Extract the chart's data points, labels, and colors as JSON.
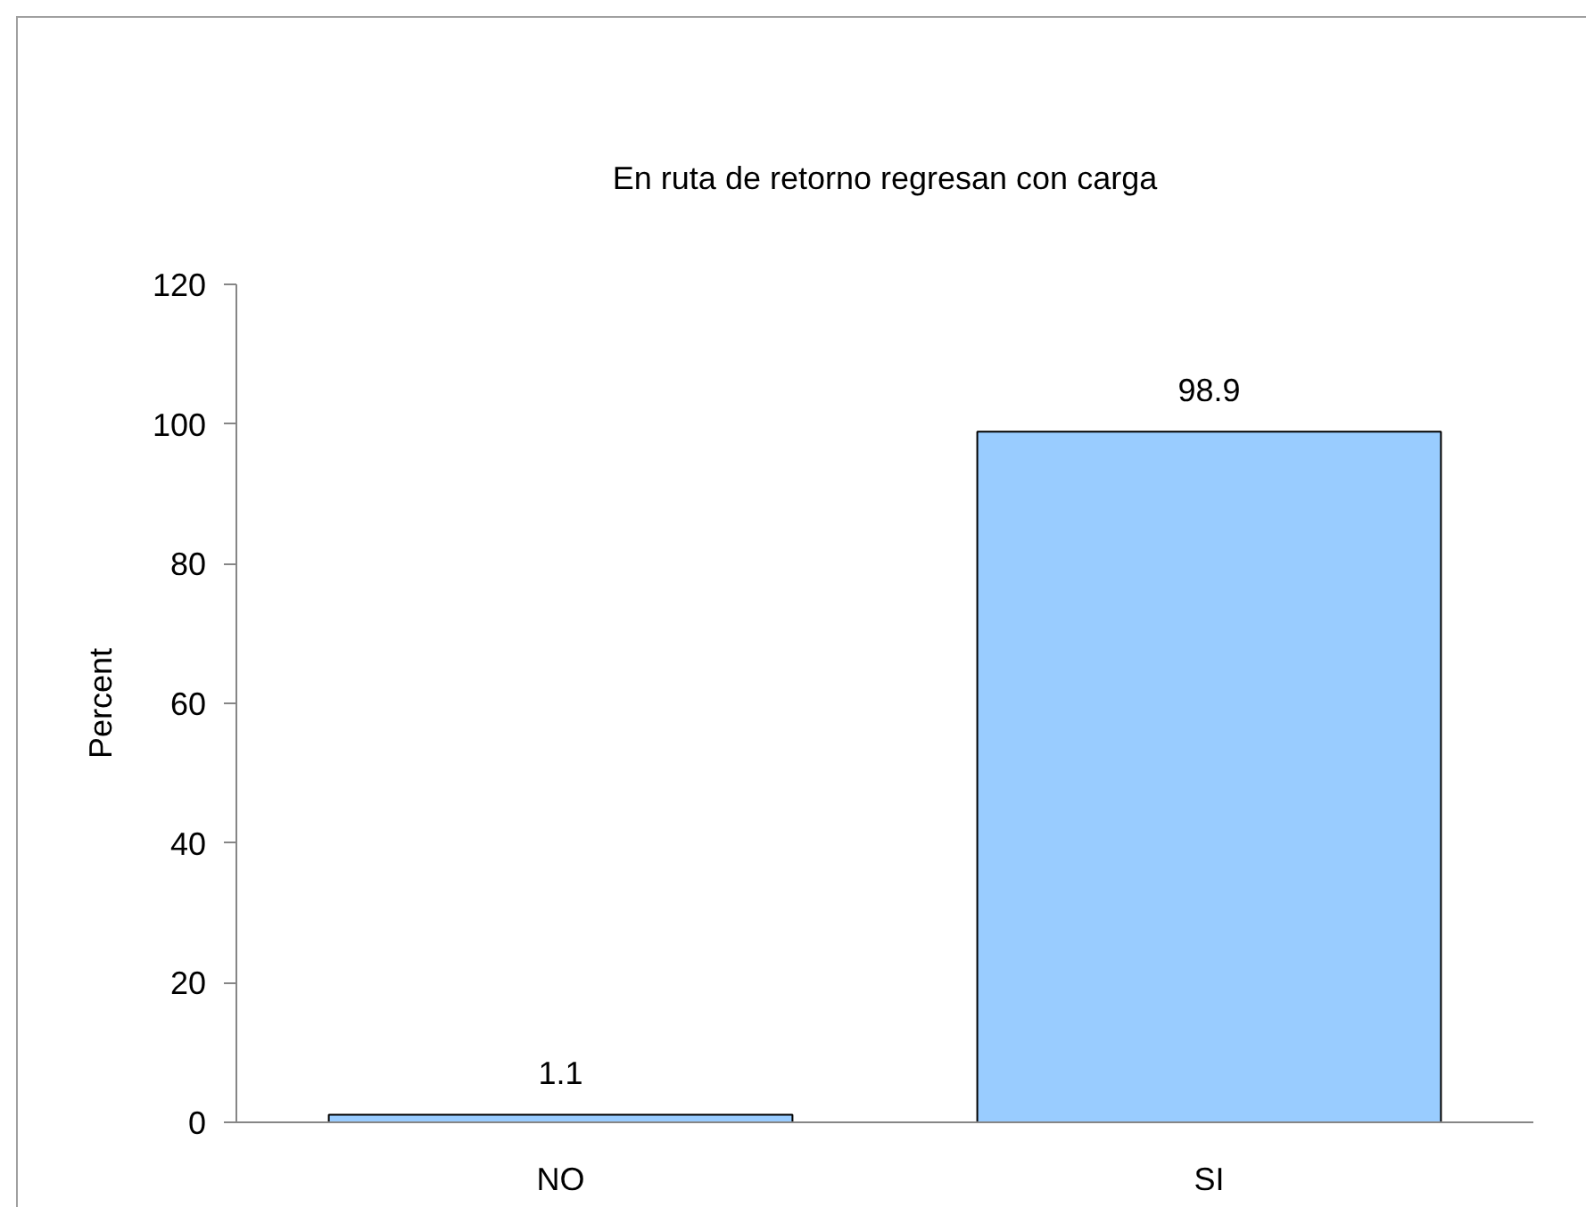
{
  "chart_data": {
    "type": "bar",
    "title": "En ruta de retorno regresan con carga",
    "ylabel": "Percent",
    "categories": [
      "NO",
      "SI"
    ],
    "values": [
      1.1,
      98.9
    ],
    "color": "#99ccff",
    "ylim": [
      0,
      120
    ],
    "yticks": [
      0,
      20,
      40,
      60,
      80,
      100,
      120
    ],
    "data_labels": true
  }
}
